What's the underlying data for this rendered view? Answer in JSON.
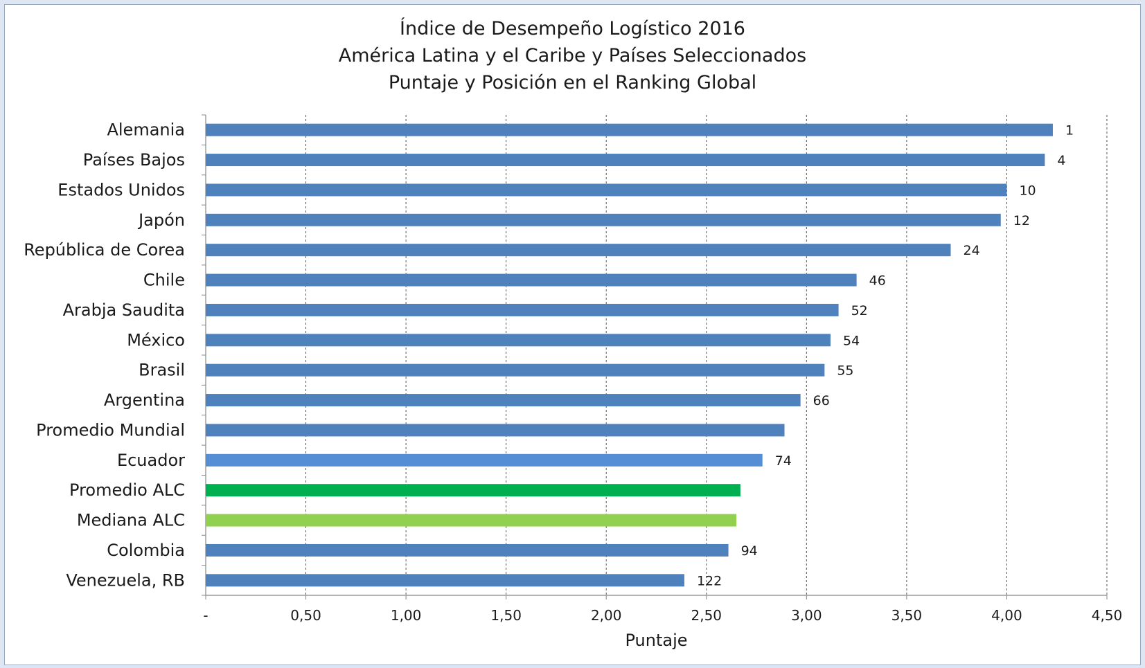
{
  "chart_data": {
    "type": "bar",
    "orientation": "horizontal",
    "title": "Índice de Desempeño Logístico 2016",
    "subtitle": "América Latina y el Caribe y Países Seleccionados",
    "subtitle2": "Puntaje y Posición en el Ranking Global",
    "xlabel": "Puntaje",
    "ylabel": "",
    "xlim": [
      0,
      4.5
    ],
    "x_ticks": [
      0,
      0.5,
      1.0,
      1.5,
      2.0,
      2.5,
      3.0,
      3.5,
      4.0,
      4.5
    ],
    "x_tick_labels": [
      "-",
      "0,50",
      "1,00",
      "1,50",
      "2,00",
      "2,50",
      "3,00",
      "3,50",
      "4,00",
      "4,50"
    ],
    "grid": "vertical dashed",
    "legend": "none",
    "categories": [
      "Alemania",
      "Países Bajos",
      "Estados Unidos",
      "Japón",
      "República de Corea",
      "Chile",
      "Arabja Saudita",
      "México",
      "Brasil",
      "Argentina",
      "Promedio Mundial",
      "Ecuador",
      "Promedio ALC",
      "Mediana ALC",
      "Colombia",
      "Venezuela, RB"
    ],
    "values": [
      4.23,
      4.19,
      4.0,
      3.97,
      3.72,
      3.25,
      3.16,
      3.12,
      3.09,
      2.97,
      2.89,
      2.78,
      2.67,
      2.65,
      2.61,
      2.39
    ],
    "data_labels": [
      "1",
      "4",
      "10",
      "12",
      "24",
      "46",
      "52",
      "54",
      "55",
      "66",
      "",
      "74",
      "",
      "",
      "94",
      "122"
    ],
    "colors": [
      "#4f81bd",
      "#4f81bd",
      "#4f81bd",
      "#4f81bd",
      "#4f81bd",
      "#4f81bd",
      "#4f81bd",
      "#4f81bd",
      "#4f81bd",
      "#4f81bd",
      "#4f81bd",
      "#558ed5",
      "#00b050",
      "#92d050",
      "#4f81bd",
      "#4f81bd"
    ]
  }
}
